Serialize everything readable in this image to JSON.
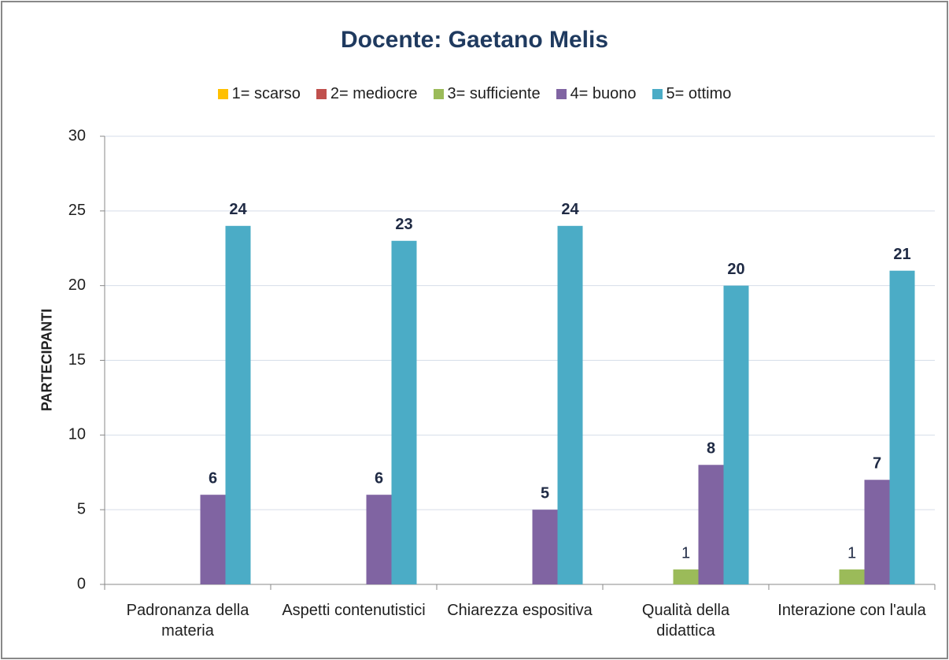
{
  "chart_data": {
    "type": "bar",
    "title": "Docente: Gaetano Melis",
    "ylabel": "PARTECIPANTI",
    "categories": [
      "Padronanza della materia",
      "Aspetti contenutistici",
      "Chiarezza espositiva",
      "Qualità della didattica",
      "Interazione con l'aula"
    ],
    "series": [
      {
        "name": "1= scarso",
        "color": "#ffc000",
        "values": [
          0,
          0,
          0,
          0,
          0
        ]
      },
      {
        "name": "2= mediocre",
        "color": "#c0504d",
        "values": [
          0,
          0,
          0,
          0,
          0
        ]
      },
      {
        "name": "3= sufficiente",
        "color": "#9bbb59",
        "values": [
          0,
          0,
          0,
          1,
          1
        ]
      },
      {
        "name": "4= buono",
        "color": "#8064a2",
        "values": [
          6,
          6,
          5,
          8,
          7
        ]
      },
      {
        "name": "5= ottimo",
        "color": "#4bacc6",
        "values": [
          24,
          23,
          24,
          20,
          21
        ]
      }
    ],
    "ylim": [
      0,
      30
    ],
    "yticks": [
      0,
      5,
      10,
      15,
      20,
      25,
      30
    ],
    "grid": true,
    "legend": "top"
  }
}
